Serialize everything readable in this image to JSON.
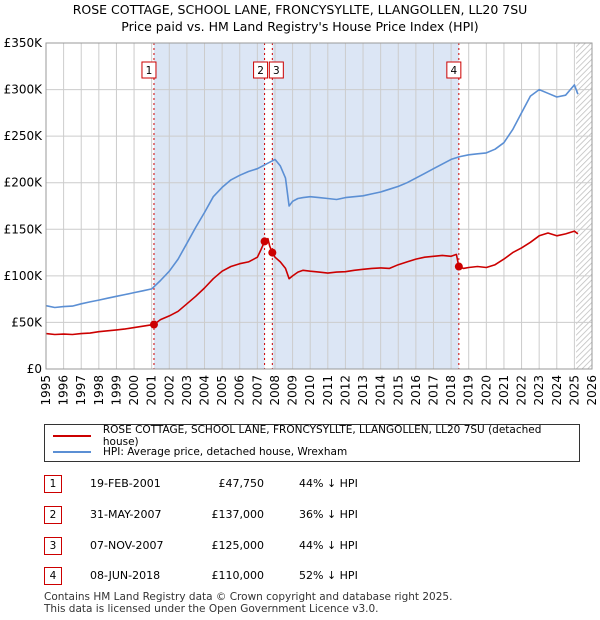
{
  "title_line1": "ROSE COTTAGE, SCHOOL LANE, FRONCYSYLLTE, LLANGOLLEN, LL20 7SU",
  "title_line2": "Price paid vs. HM Land Registry's House Price Index (HPI)",
  "colors": {
    "property": "#cc0000",
    "hpi": "#5b8fd4",
    "shade": "#dce6f5",
    "grid": "#cccccc",
    "marker_line": "#cc0000"
  },
  "chart_data": {
    "type": "line",
    "title": "Price paid vs. HM Land Registry's House Price Index (HPI)",
    "xlabel": "",
    "ylabel": "",
    "xlim": [
      1995,
      2026
    ],
    "ylim": [
      0,
      350000
    ],
    "x_ticks": [
      "1995",
      "1996",
      "1997",
      "1998",
      "1999",
      "2000",
      "2001",
      "2002",
      "2003",
      "2004",
      "2005",
      "2006",
      "2007",
      "2008",
      "2009",
      "2010",
      "2011",
      "2012",
      "2013",
      "2014",
      "2015",
      "2016",
      "2017",
      "2018",
      "2019",
      "2020",
      "2021",
      "2022",
      "2023",
      "2024",
      "2025",
      "2026"
    ],
    "y_ticks": [
      {
        "value": 0,
        "label": "£0"
      },
      {
        "value": 50000,
        "label": "£50K"
      },
      {
        "value": 100000,
        "label": "£100K"
      },
      {
        "value": 150000,
        "label": "£150K"
      },
      {
        "value": 200000,
        "label": "£200K"
      },
      {
        "value": 250000,
        "label": "£250K"
      },
      {
        "value": 300000,
        "label": "£300K"
      },
      {
        "value": 350000,
        "label": "£350K"
      }
    ],
    "forecast_from": 2025.1,
    "shaded_ranges": [
      [
        2001.13,
        2007.41
      ],
      [
        2007.85,
        2018.44
      ]
    ],
    "series": [
      {
        "name": "ROSE COTTAGE, SCHOOL LANE, FRONCYSYLLTE, LLANGOLLEN, LL20 7SU (detached house)",
        "color": "#cc0000",
        "x": [
          1995.0,
          1995.5,
          1996.0,
          1996.5,
          1997.0,
          1997.5,
          1998.0,
          1998.5,
          1999.0,
          1999.5,
          2000.0,
          2000.5,
          2001.0,
          2001.13,
          2001.5,
          2002.0,
          2002.5,
          2003.0,
          2003.5,
          2004.0,
          2004.5,
          2005.0,
          2005.5,
          2006.0,
          2006.5,
          2007.0,
          2007.2,
          2007.41,
          2007.6,
          2007.7,
          2007.85,
          2008.0,
          2008.3,
          2008.6,
          2008.8,
          2009.0,
          2009.3,
          2009.6,
          2010.0,
          2010.5,
          2011.0,
          2011.5,
          2012.0,
          2012.5,
          2013.0,
          2013.5,
          2014.0,
          2014.5,
          2015.0,
          2015.5,
          2016.0,
          2016.5,
          2017.0,
          2017.5,
          2018.0,
          2018.3,
          2018.44,
          2018.7,
          2019.0,
          2019.5,
          2020.0,
          2020.5,
          2021.0,
          2021.5,
          2022.0,
          2022.5,
          2023.0,
          2023.5,
          2024.0,
          2024.5,
          2025.0,
          2025.2
        ],
        "values": [
          38000,
          37000,
          37500,
          37000,
          38000,
          38500,
          40000,
          41000,
          42000,
          43000,
          44500,
          46000,
          47500,
          47750,
          53000,
          57000,
          62000,
          70000,
          78000,
          87000,
          97000,
          105000,
          110000,
          113000,
          115000,
          120000,
          128000,
          137000,
          140000,
          132000,
          125000,
          120000,
          115000,
          108000,
          97000,
          100000,
          104000,
          106000,
          105000,
          104000,
          103000,
          104000,
          104500,
          106000,
          107000,
          108000,
          108500,
          108000,
          112000,
          115000,
          118000,
          120000,
          121000,
          122000,
          121000,
          123000,
          110000,
          108000,
          109000,
          110000,
          109000,
          112000,
          118000,
          125000,
          130000,
          136000,
          143000,
          146000,
          143000,
          145000,
          148000,
          145000
        ]
      },
      {
        "name": "HPI: Average price, detached house, Wrexham",
        "color": "#5b8fd4",
        "x": [
          1995.0,
          1995.5,
          1996.0,
          1996.5,
          1997.0,
          1997.5,
          1998.0,
          1998.5,
          1999.0,
          1999.5,
          2000.0,
          2000.5,
          2001.0,
          2001.5,
          2002.0,
          2002.5,
          2003.0,
          2003.5,
          2004.0,
          2004.5,
          2005.0,
          2005.5,
          2006.0,
          2006.5,
          2007.0,
          2007.5,
          2008.0,
          2008.3,
          2008.6,
          2008.8,
          2009.0,
          2009.3,
          2009.6,
          2010.0,
          2010.5,
          2011.0,
          2011.5,
          2012.0,
          2012.5,
          2013.0,
          2013.5,
          2014.0,
          2014.5,
          2015.0,
          2015.5,
          2016.0,
          2016.5,
          2017.0,
          2017.5,
          2018.0,
          2018.5,
          2019.0,
          2019.5,
          2020.0,
          2020.5,
          2021.0,
          2021.5,
          2022.0,
          2022.5,
          2023.0,
          2023.5,
          2024.0,
          2024.5,
          2025.0,
          2025.2
        ],
        "values": [
          68000,
          66000,
          67000,
          67500,
          70000,
          72000,
          74000,
          76000,
          78000,
          80000,
          82000,
          84000,
          86000,
          95000,
          105000,
          118000,
          135000,
          152000,
          168000,
          185000,
          195000,
          203000,
          208000,
          212000,
          215000,
          220000,
          225000,
          218000,
          205000,
          175000,
          180000,
          183000,
          184000,
          185000,
          184000,
          183000,
          182000,
          184000,
          185000,
          186000,
          188000,
          190000,
          193000,
          196000,
          200000,
          205000,
          210000,
          215000,
          220000,
          225000,
          228000,
          230000,
          231000,
          232000,
          236000,
          243000,
          257000,
          275000,
          293000,
          300000,
          296000,
          292000,
          294000,
          305000,
          295000
        ]
      }
    ],
    "sale_markers": [
      {
        "id": "1",
        "x": 2001.13,
        "value": 47750
      },
      {
        "id": "2",
        "x": 2007.41,
        "value": 137000
      },
      {
        "id": "3",
        "x": 2007.85,
        "value": 125000
      },
      {
        "id": "4",
        "x": 2018.44,
        "value": 110000
      }
    ]
  },
  "legend": {
    "property_label": "ROSE COTTAGE, SCHOOL LANE, FRONCYSYLLTE, LLANGOLLEN, LL20 7SU (detached house)",
    "hpi_label": "HPI: Average price, detached house, Wrexham"
  },
  "sales": [
    {
      "id": "1",
      "date": "19-FEB-2001",
      "price": "£47,750",
      "hpi": "44% ↓ HPI"
    },
    {
      "id": "2",
      "date": "31-MAY-2007",
      "price": "£137,000",
      "hpi": "36% ↓ HPI"
    },
    {
      "id": "3",
      "date": "07-NOV-2007",
      "price": "£125,000",
      "hpi": "44% ↓ HPI"
    },
    {
      "id": "4",
      "date": "08-JUN-2018",
      "price": "£110,000",
      "hpi": "52% ↓ HPI"
    }
  ],
  "footer": {
    "line1": "Contains HM Land Registry data © Crown copyright and database right 2025.",
    "line2": "This data is licensed under the Open Government Licence v3.0."
  }
}
